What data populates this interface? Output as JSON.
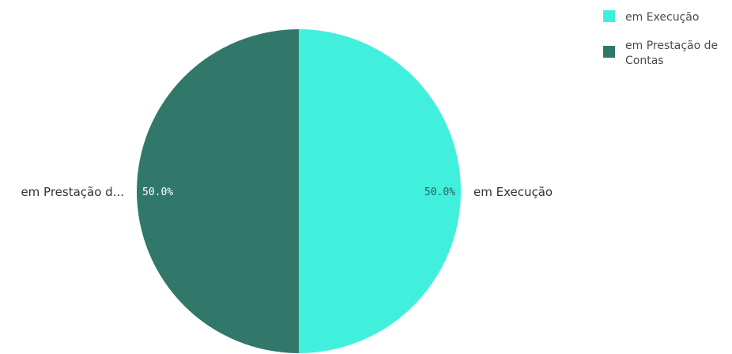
{
  "chart_data": {
    "type": "pie",
    "title": "",
    "slices": [
      {
        "name": "em Execução",
        "value": 50.0,
        "color": "#40f0dc",
        "pct_label": "50.0%",
        "outer_label": "em Execução",
        "legend_lines": [
          "em Execução"
        ]
      },
      {
        "name": "em Prestação de Contas",
        "value": 50.0,
        "color": "#31786b",
        "pct_label": "50.0%",
        "outer_label": "em Prestação d...",
        "legend_lines": [
          "em Prestação de",
          "Contas"
        ]
      }
    ],
    "legend_position": "top-right"
  }
}
